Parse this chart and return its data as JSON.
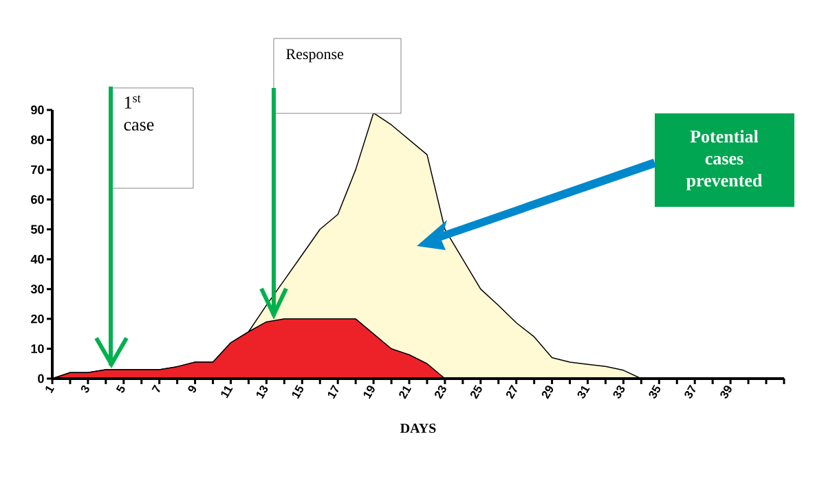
{
  "chart_data": {
    "type": "area",
    "xlabel": "DAYS",
    "categories": [
      "1",
      null,
      "3",
      null,
      "5",
      null,
      "7",
      null,
      "9",
      null,
      "11",
      null,
      "13",
      null,
      "15",
      null,
      "17",
      null,
      "19",
      null,
      "21",
      null,
      "23",
      null,
      "25",
      null,
      "27",
      null,
      "29",
      null,
      "31",
      null,
      "33",
      null,
      "35",
      null,
      "37",
      null,
      "39",
      null,
      null,
      null
    ],
    "series": [
      {
        "color": "#fff9d4",
        "values": [
          0,
          2,
          2,
          3,
          3,
          3,
          3,
          4,
          5.5,
          5.5,
          12,
          15.7,
          24.6,
          33,
          41.5,
          50,
          55,
          70,
          89,
          85,
          80,
          75,
          50,
          40,
          30,
          24.5,
          18.7,
          14,
          7,
          5.5,
          4.8,
          4.1,
          2.8,
          0,
          0,
          0,
          0,
          0,
          0,
          0,
          0,
          0
        ]
      },
      {
        "color": "#ed2229",
        "values": [
          0,
          2,
          2,
          3,
          3,
          3,
          3,
          4,
          5.5,
          5.5,
          12,
          15.7,
          19,
          20,
          20,
          20,
          20,
          20,
          15,
          10,
          8,
          5,
          0,
          0,
          0,
          0,
          0,
          0,
          0,
          0,
          0,
          0,
          0,
          0,
          0,
          0,
          0,
          0,
          0,
          0,
          0,
          0
        ]
      }
    ],
    "ylim": [
      0,
      90
    ],
    "yticks": [
      0,
      10,
      20,
      30,
      40,
      50,
      60,
      70,
      80,
      90
    ],
    "annotations": [
      "1$^{st}$ case",
      "Response",
      "**Potential cases prevented**"
    ]
  }
}
